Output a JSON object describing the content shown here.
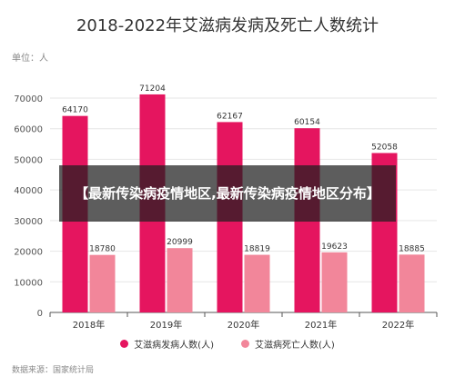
{
  "title": "2018-2022年艾滋病发病及死亡人数统计",
  "unit_label": "单位：人",
  "source": "数据来源：国家统计局",
  "banner_text": "【最新传染病疫情地区,最新传染病疫情地区分布】",
  "colors": {
    "series1": "#e5155f",
    "series2": "#f2869a",
    "grid": "#e6e6e6",
    "axis": "#555555"
  },
  "chart_data": {
    "type": "bar",
    "categories": [
      "2018年",
      "2019年",
      "2020年",
      "2021年",
      "2022年"
    ],
    "series": [
      {
        "name": "艾滋病发病人数(人)",
        "values": [
          64170,
          71204,
          62167,
          60154,
          52058
        ]
      },
      {
        "name": "艾滋病死亡人数(人)",
        "values": [
          18780,
          20999,
          18819,
          19623,
          18885
        ]
      }
    ],
    "ylim": [
      0,
      70000
    ],
    "yticks": [
      0,
      10000,
      20000,
      30000,
      40000,
      50000,
      60000,
      70000
    ],
    "grid": true,
    "legend": "bottom"
  }
}
